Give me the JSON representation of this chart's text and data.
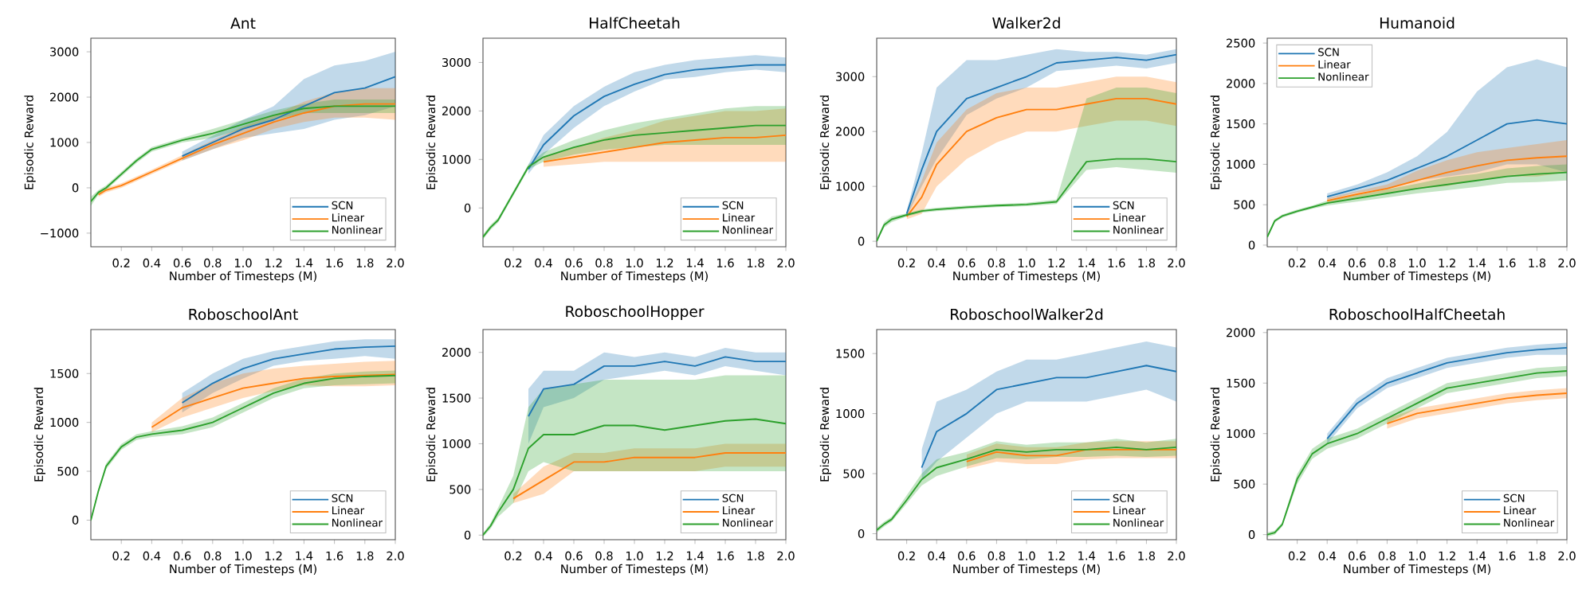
{
  "chart_data": [
    {
      "type": "line",
      "title": "Ant",
      "xlabel": "Number of Timesteps (M)",
      "ylabel": "Episodic Reward",
      "legend": "bottom right",
      "x": [
        0,
        0.05,
        0.1,
        0.2,
        0.3,
        0.4,
        0.6,
        0.8,
        1.0,
        1.2,
        1.4,
        1.6,
        1.8,
        2.0
      ],
      "xlim": [
        0,
        2
      ],
      "xticks": [
        {
          "value": 0.2,
          "label": "0.2"
        },
        {
          "value": 0.4,
          "label": "0.4"
        },
        {
          "value": 0.6,
          "label": "0.6"
        },
        {
          "value": 0.8,
          "label": "0.8"
        },
        {
          "value": 1.0,
          "label": "1.0"
        },
        {
          "value": 1.2,
          "label": "1.2"
        },
        {
          "value": 1.4,
          "label": "1.4"
        },
        {
          "value": 1.6,
          "label": "1.6"
        },
        {
          "value": 1.8,
          "label": "1.8"
        },
        {
          "value": 2.0,
          "label": "2.0"
        }
      ],
      "ylim": [
        -1300,
        3300
      ],
      "yticks": [
        {
          "value": -1000,
          "label": "−1000"
        },
        0,
        1000,
        2000,
        3000
      ],
      "series": [
        {
          "name": "SCN",
          "color": "#1f77b4",
          "values": [
            null,
            null,
            null,
            null,
            null,
            null,
            700,
            1000,
            1300,
            1500,
            1800,
            2100,
            2200,
            2450
          ],
          "lower": [
            null,
            null,
            null,
            null,
            null,
            null,
            600,
            850,
            1100,
            1200,
            1300,
            1500,
            1600,
            1800
          ],
          "upper": [
            null,
            null,
            null,
            null,
            null,
            null,
            800,
            1150,
            1500,
            1800,
            2400,
            2700,
            2800,
            3000
          ]
        },
        {
          "name": "Linear",
          "color": "#ff7f0e",
          "values": [
            null,
            -150,
            -50,
            50,
            200,
            350,
            650,
            950,
            1200,
            1450,
            1650,
            1800,
            1850,
            1850
          ],
          "lower": [
            null,
            -200,
            -100,
            0,
            150,
            300,
            600,
            850,
            1050,
            1300,
            1450,
            1550,
            1550,
            1500
          ],
          "upper": [
            null,
            -100,
            0,
            100,
            250,
            400,
            720,
            1050,
            1350,
            1600,
            1900,
            2100,
            2200,
            2200
          ]
        },
        {
          "name": "Nonlinear",
          "color": "#2ca02c",
          "values": [
            -300,
            -100,
            0,
            300,
            600,
            850,
            1050,
            1200,
            1400,
            1600,
            1750,
            1800,
            1800,
            1800
          ],
          "lower": [
            -400,
            -150,
            -50,
            250,
            550,
            800,
            1000,
            1100,
            1300,
            1500,
            1650,
            1650,
            1650,
            1650
          ],
          "upper": [
            -200,
            -50,
            50,
            350,
            650,
            900,
            1100,
            1300,
            1500,
            1700,
            1850,
            1950,
            1950,
            1950
          ]
        }
      ]
    },
    {
      "type": "line",
      "title": "HalfCheetah",
      "xlabel": "Number of Timesteps (M)",
      "ylabel": "Episodic Reward",
      "legend": "bottom right",
      "x": [
        0,
        0.05,
        0.1,
        0.2,
        0.3,
        0.4,
        0.6,
        0.8,
        1.0,
        1.2,
        1.4,
        1.6,
        1.8,
        2.0
      ],
      "xlim": [
        0,
        2
      ],
      "xticks": [
        {
          "value": 0.2,
          "label": "0.2"
        },
        {
          "value": 0.4,
          "label": "0.4"
        },
        {
          "value": 0.6,
          "label": "0.6"
        },
        {
          "value": 0.8,
          "label": "0.8"
        },
        {
          "value": 1.0,
          "label": "1.0"
        },
        {
          "value": 1.2,
          "label": "1.2"
        },
        {
          "value": 1.4,
          "label": "1.4"
        },
        {
          "value": 1.6,
          "label": "1.6"
        },
        {
          "value": 1.8,
          "label": "1.8"
        },
        {
          "value": 2.0,
          "label": "2.0"
        }
      ],
      "ylim": [
        -800,
        3500
      ],
      "yticks": [
        0,
        1000,
        2000,
        3000
      ],
      "series": [
        {
          "name": "SCN",
          "color": "#1f77b4",
          "values": [
            null,
            null,
            null,
            null,
            800,
            1300,
            1900,
            2300,
            2550,
            2750,
            2850,
            2900,
            2950,
            2950
          ],
          "lower": [
            null,
            null,
            null,
            null,
            700,
            1100,
            1650,
            2100,
            2400,
            2650,
            2700,
            2800,
            2850,
            2800
          ],
          "upper": [
            null,
            null,
            null,
            null,
            900,
            1500,
            2100,
            2500,
            2800,
            2950,
            3050,
            3100,
            3150,
            3100
          ]
        },
        {
          "name": "Linear",
          "color": "#ff7f0e",
          "values": [
            null,
            null,
            null,
            null,
            null,
            950,
            1050,
            1150,
            1250,
            1350,
            1400,
            1450,
            1450,
            1500
          ],
          "lower": [
            null,
            null,
            null,
            null,
            null,
            850,
            900,
            950,
            950,
            950,
            950,
            950,
            950,
            950
          ],
          "upper": [
            null,
            null,
            null,
            null,
            null,
            1050,
            1250,
            1450,
            1600,
            1800,
            1900,
            2000,
            2000,
            2050
          ]
        },
        {
          "name": "Nonlinear",
          "color": "#2ca02c",
          "values": [
            -600,
            -400,
            -250,
            300,
            850,
            1050,
            1250,
            1400,
            1500,
            1550,
            1600,
            1650,
            1700,
            1700
          ],
          "lower": [
            -650,
            -450,
            -300,
            250,
            800,
            950,
            1100,
            1200,
            1250,
            1300,
            1300,
            1300,
            1300,
            1300
          ],
          "upper": [
            -550,
            -350,
            -200,
            350,
            900,
            1150,
            1400,
            1600,
            1750,
            1850,
            1950,
            2050,
            2100,
            2100
          ]
        }
      ]
    },
    {
      "type": "line",
      "title": "Walker2d",
      "xlabel": "Number of Timesteps (M)",
      "ylabel": "Episodic Reward",
      "legend": "bottom right",
      "x": [
        0,
        0.05,
        0.1,
        0.2,
        0.3,
        0.4,
        0.6,
        0.8,
        1.0,
        1.2,
        1.4,
        1.6,
        1.8,
        2.0
      ],
      "xlim": [
        0,
        2
      ],
      "xticks": [
        {
          "value": 0.2,
          "label": "0.2"
        },
        {
          "value": 0.4,
          "label": "0.4"
        },
        {
          "value": 0.6,
          "label": "0.6"
        },
        {
          "value": 0.8,
          "label": "0.8"
        },
        {
          "value": 1.0,
          "label": "1.0"
        },
        {
          "value": 1.2,
          "label": "1.2"
        },
        {
          "value": 1.4,
          "label": "1.4"
        },
        {
          "value": 1.6,
          "label": "1.6"
        },
        {
          "value": 1.8,
          "label": "1.8"
        },
        {
          "value": 2.0,
          "label": "2.0"
        }
      ],
      "ylim": [
        -100,
        3700
      ],
      "yticks": [
        0,
        1000,
        2000,
        3000
      ],
      "series": [
        {
          "name": "SCN",
          "color": "#1f77b4",
          "values": [
            null,
            null,
            null,
            500,
            1300,
            2000,
            2600,
            2800,
            3000,
            3250,
            3300,
            3350,
            3300,
            3400
          ],
          "lower": [
            null,
            null,
            null,
            450,
            1000,
            1500,
            2300,
            2600,
            2800,
            3100,
            3150,
            3200,
            3150,
            3250
          ],
          "upper": [
            null,
            null,
            null,
            550,
            1600,
            2800,
            3300,
            3300,
            3400,
            3500,
            3450,
            3450,
            3400,
            3500
          ]
        },
        {
          "name": "Linear",
          "color": "#ff7f0e",
          "values": [
            null,
            null,
            null,
            450,
            800,
            1400,
            2000,
            2250,
            2400,
            2400,
            2500,
            2600,
            2600,
            2500
          ],
          "lower": [
            null,
            null,
            null,
            400,
            500,
            1000,
            1500,
            1800,
            2000,
            2000,
            2100,
            2200,
            2200,
            2100
          ],
          "upper": [
            null,
            null,
            null,
            500,
            1100,
            1800,
            2400,
            2700,
            2800,
            2800,
            2900,
            3000,
            3000,
            2900
          ]
        },
        {
          "name": "Nonlinear",
          "color": "#2ca02c",
          "values": [
            0,
            300,
            400,
            480,
            550,
            580,
            620,
            650,
            670,
            720,
            1450,
            1500,
            1500,
            1450
          ],
          "lower": [
            0,
            250,
            350,
            450,
            520,
            550,
            590,
            620,
            640,
            680,
            1300,
            1350,
            1300,
            1250
          ],
          "upper": [
            50,
            350,
            450,
            510,
            580,
            610,
            650,
            680,
            700,
            760,
            2600,
            2800,
            2800,
            2700
          ]
        }
      ]
    },
    {
      "type": "line",
      "title": "Humanoid",
      "xlabel": "Number of Timesteps (M)",
      "ylabel": "Episodic Reward",
      "legend": "top left",
      "x": [
        0,
        0.05,
        0.1,
        0.2,
        0.3,
        0.4,
        0.6,
        0.8,
        1.0,
        1.2,
        1.4,
        1.6,
        1.8,
        2.0
      ],
      "xlim": [
        0,
        2
      ],
      "xticks": [
        {
          "value": 0.2,
          "label": "0.2"
        },
        {
          "value": 0.4,
          "label": "0.4"
        },
        {
          "value": 0.6,
          "label": "0.6"
        },
        {
          "value": 0.8,
          "label": "0.8"
        },
        {
          "value": 1.0,
          "label": "1.0"
        },
        {
          "value": 1.2,
          "label": "1.2"
        },
        {
          "value": 1.4,
          "label": "1.4"
        },
        {
          "value": 1.6,
          "label": "1.6"
        },
        {
          "value": 1.8,
          "label": "1.8"
        },
        {
          "value": 2.0,
          "label": "2.0"
        }
      ],
      "ylim": [
        -20,
        2560
      ],
      "yticks": [
        0,
        500,
        1000,
        1500,
        2000,
        2500
      ],
      "series": [
        {
          "name": "SCN",
          "color": "#1f77b4",
          "values": [
            null,
            null,
            null,
            null,
            null,
            600,
            700,
            800,
            950,
            1100,
            1300,
            1500,
            1550,
            1500
          ],
          "lower": [
            null,
            null,
            null,
            null,
            null,
            560,
            650,
            700,
            800,
            850,
            900,
            1000,
            1000,
            900
          ],
          "upper": [
            null,
            null,
            null,
            null,
            null,
            640,
            750,
            900,
            1100,
            1400,
            1900,
            2200,
            2300,
            2200
          ]
        },
        {
          "name": "Linear",
          "color": "#ff7f0e",
          "values": [
            null,
            null,
            null,
            null,
            null,
            550,
            630,
            700,
            800,
            900,
            980,
            1050,
            1080,
            1100
          ],
          "lower": [
            null,
            null,
            null,
            null,
            null,
            520,
            590,
            650,
            700,
            730,
            800,
            850,
            850,
            900
          ],
          "upper": [
            null,
            null,
            null,
            null,
            null,
            580,
            670,
            750,
            920,
            1050,
            1150,
            1200,
            1250,
            1300
          ]
        },
        {
          "name": "Nonlinear",
          "color": "#2ca02c",
          "values": [
            100,
            300,
            360,
            420,
            470,
            520,
            580,
            640,
            700,
            750,
            800,
            850,
            880,
            900
          ],
          "lower": [
            80,
            280,
            340,
            400,
            450,
            490,
            540,
            590,
            640,
            680,
            720,
            770,
            780,
            800
          ],
          "upper": [
            120,
            320,
            380,
            440,
            490,
            550,
            620,
            690,
            760,
            840,
            880,
            950,
            980,
            1000
          ]
        }
      ]
    },
    {
      "type": "line",
      "title": "RoboschoolAnt",
      "xlabel": "Number of Timesteps (M)",
      "ylabel": "Episodic Reward",
      "legend": "bottom right",
      "x": [
        0,
        0.05,
        0.1,
        0.2,
        0.3,
        0.4,
        0.6,
        0.8,
        1.0,
        1.2,
        1.4,
        1.6,
        1.8,
        2.0
      ],
      "xlim": [
        0,
        2
      ],
      "xticks": [
        {
          "value": 0.2,
          "label": "0.2"
        },
        {
          "value": 0.4,
          "label": "0.4"
        },
        {
          "value": 0.6,
          "label": "0.6"
        },
        {
          "value": 0.8,
          "label": "0.8"
        },
        {
          "value": 1.0,
          "label": "1.0"
        },
        {
          "value": 1.2,
          "label": "1.2"
        },
        {
          "value": 1.4,
          "label": "1.4"
        },
        {
          "value": 1.6,
          "label": "1.6"
        },
        {
          "value": 1.8,
          "label": "1.8"
        },
        {
          "value": 2.0,
          "label": "2.0"
        }
      ],
      "ylim": [
        -200,
        1950
      ],
      "yticks": [
        0,
        500,
        1000,
        1500
      ],
      "series": [
        {
          "name": "SCN",
          "color": "#1f77b4",
          "values": [
            null,
            null,
            null,
            null,
            null,
            null,
            1200,
            1400,
            1550,
            1650,
            1700,
            1750,
            1770,
            1780
          ],
          "lower": [
            null,
            null,
            null,
            null,
            null,
            null,
            1100,
            1300,
            1450,
            1580,
            1630,
            1650,
            1680,
            1650
          ],
          "upper": [
            null,
            null,
            null,
            null,
            null,
            null,
            1300,
            1500,
            1650,
            1730,
            1780,
            1830,
            1850,
            1850
          ]
        },
        {
          "name": "Linear",
          "color": "#ff7f0e",
          "values": [
            null,
            null,
            null,
            null,
            null,
            950,
            1150,
            1250,
            1350,
            1400,
            1450,
            1470,
            1480,
            1490
          ],
          "lower": [
            null,
            null,
            null,
            null,
            null,
            900,
            1050,
            1150,
            1250,
            1320,
            1380,
            1370,
            1370,
            1380
          ],
          "upper": [
            null,
            null,
            null,
            null,
            null,
            1000,
            1250,
            1400,
            1500,
            1550,
            1580,
            1600,
            1620,
            1630
          ]
        },
        {
          "name": "Nonlinear",
          "color": "#2ca02c",
          "values": [
            0,
            300,
            550,
            750,
            850,
            880,
            920,
            1000,
            1150,
            1300,
            1400,
            1450,
            1470,
            1480
          ],
          "lower": [
            -20,
            280,
            520,
            720,
            820,
            850,
            880,
            950,
            1100,
            1250,
            1350,
            1380,
            1390,
            1400
          ],
          "upper": [
            20,
            320,
            580,
            780,
            880,
            910,
            960,
            1050,
            1200,
            1350,
            1450,
            1500,
            1520,
            1530
          ]
        }
      ]
    },
    {
      "type": "line",
      "title": "RoboschoolHopper",
      "xlabel": "Number of Timesteps (M)",
      "ylabel": "Episodic Reward",
      "legend": "bottom right",
      "x": [
        0,
        0.05,
        0.1,
        0.2,
        0.3,
        0.4,
        0.6,
        0.8,
        1.0,
        1.2,
        1.4,
        1.6,
        1.8,
        2.0
      ],
      "xlim": [
        0,
        2
      ],
      "xticks": [
        {
          "value": 0.2,
          "label": "0.2"
        },
        {
          "value": 0.4,
          "label": "0.4"
        },
        {
          "value": 0.6,
          "label": "0.6"
        },
        {
          "value": 0.8,
          "label": "0.8"
        },
        {
          "value": 1.0,
          "label": "1.0"
        },
        {
          "value": 1.2,
          "label": "1.2"
        },
        {
          "value": 1.4,
          "label": "1.4"
        },
        {
          "value": 1.6,
          "label": "1.6"
        },
        {
          "value": 1.8,
          "label": "1.8"
        },
        {
          "value": 2.0,
          "label": "2.0"
        }
      ],
      "ylim": [
        -50,
        2250
      ],
      "yticks": [
        0,
        500,
        1000,
        1500,
        2000
      ],
      "series": [
        {
          "name": "SCN",
          "color": "#1f77b4",
          "values": [
            null,
            null,
            null,
            null,
            1300,
            1600,
            1650,
            1850,
            1850,
            1900,
            1850,
            1950,
            1900,
            1900
          ],
          "lower": [
            null,
            null,
            null,
            null,
            1000,
            1400,
            1500,
            1700,
            1750,
            1800,
            1750,
            1850,
            1800,
            1750
          ],
          "upper": [
            null,
            null,
            null,
            null,
            1600,
            1800,
            1800,
            2000,
            1950,
            2000,
            1950,
            2050,
            2000,
            2000
          ]
        },
        {
          "name": "Linear",
          "color": "#ff7f0e",
          "values": [
            null,
            null,
            null,
            400,
            500,
            600,
            800,
            800,
            850,
            850,
            850,
            900,
            900,
            900
          ],
          "lower": [
            null,
            null,
            null,
            350,
            400,
            450,
            700,
            700,
            700,
            700,
            700,
            750,
            750,
            750
          ],
          "upper": [
            null,
            null,
            null,
            450,
            600,
            750,
            900,
            900,
            950,
            950,
            950,
            1000,
            1000,
            1000
          ]
        },
        {
          "name": "Nonlinear",
          "color": "#2ca02c",
          "values": [
            0,
            100,
            250,
            500,
            950,
            1100,
            1100,
            1200,
            1200,
            1150,
            1200,
            1250,
            1270,
            1220
          ],
          "lower": [
            -20,
            70,
            200,
            350,
            700,
            800,
            700,
            700,
            700,
            700,
            700,
            700,
            700,
            700
          ],
          "upper": [
            20,
            130,
            300,
            650,
            1400,
            1600,
            1650,
            1700,
            1700,
            1700,
            1700,
            1750,
            1750,
            1750
          ]
        }
      ]
    },
    {
      "type": "line",
      "title": "RoboschoolWalker2d",
      "xlabel": "Number of Timesteps (M)",
      "ylabel": "Episodic Reward",
      "legend": "bottom right",
      "x": [
        0,
        0.05,
        0.1,
        0.2,
        0.3,
        0.4,
        0.6,
        0.8,
        1.0,
        1.2,
        1.4,
        1.6,
        1.8,
        2.0
      ],
      "xlim": [
        0,
        2
      ],
      "xticks": [
        {
          "value": 0.2,
          "label": "0.2"
        },
        {
          "value": 0.4,
          "label": "0.4"
        },
        {
          "value": 0.6,
          "label": "0.6"
        },
        {
          "value": 0.8,
          "label": "0.8"
        },
        {
          "value": 1.0,
          "label": "1.0"
        },
        {
          "value": 1.2,
          "label": "1.2"
        },
        {
          "value": 1.4,
          "label": "1.4"
        },
        {
          "value": 1.6,
          "label": "1.6"
        },
        {
          "value": 1.8,
          "label": "1.8"
        },
        {
          "value": 2.0,
          "label": "2.0"
        }
      ],
      "ylim": [
        -50,
        1700
      ],
      "yticks": [
        0,
        500,
        1000,
        1500
      ],
      "series": [
        {
          "name": "SCN",
          "color": "#1f77b4",
          "values": [
            null,
            null,
            null,
            null,
            550,
            850,
            1000,
            1200,
            1250,
            1300,
            1300,
            1350,
            1400,
            1350
          ],
          "lower": [
            null,
            null,
            null,
            null,
            450,
            600,
            800,
            1000,
            1100,
            1100,
            1100,
            1150,
            1200,
            1100
          ],
          "upper": [
            null,
            null,
            null,
            null,
            700,
            1100,
            1200,
            1350,
            1450,
            1450,
            1500,
            1550,
            1600,
            1550
          ]
        },
        {
          "name": "Linear",
          "color": "#ff7f0e",
          "values": [
            null,
            null,
            null,
            null,
            null,
            null,
            600,
            680,
            650,
            650,
            700,
            700,
            700,
            700
          ],
          "lower": [
            null,
            null,
            null,
            null,
            null,
            null,
            540,
            600,
            580,
            580,
            620,
            630,
            630,
            630
          ],
          "upper": [
            null,
            null,
            null,
            null,
            null,
            null,
            660,
            750,
            720,
            720,
            760,
            770,
            770,
            770
          ]
        },
        {
          "name": "Nonlinear",
          "color": "#2ca02c",
          "values": [
            30,
            80,
            120,
            280,
            450,
            550,
            620,
            700,
            680,
            700,
            700,
            720,
            700,
            720
          ],
          "lower": [
            10,
            60,
            100,
            250,
            400,
            480,
            560,
            630,
            620,
            640,
            640,
            650,
            640,
            650
          ],
          "upper": [
            50,
            100,
            140,
            320,
            500,
            620,
            680,
            770,
            740,
            760,
            760,
            790,
            760,
            790
          ]
        }
      ]
    },
    {
      "type": "line",
      "title": "RoboschoolHalfCheetah",
      "xlabel": "Number of Timesteps (M)",
      "ylabel": "Episodic Reward",
      "legend": "bottom right",
      "x": [
        0,
        0.05,
        0.1,
        0.2,
        0.3,
        0.4,
        0.6,
        0.8,
        1.0,
        1.2,
        1.4,
        1.6,
        1.8,
        2.0
      ],
      "xlim": [
        0,
        2
      ],
      "xticks": [
        {
          "value": 0.2,
          "label": "0.2"
        },
        {
          "value": 0.4,
          "label": "0.4"
        },
        {
          "value": 0.6,
          "label": "0.6"
        },
        {
          "value": 0.8,
          "label": "0.8"
        },
        {
          "value": 1.0,
          "label": "1.0"
        },
        {
          "value": 1.2,
          "label": "1.2"
        },
        {
          "value": 1.4,
          "label": "1.4"
        },
        {
          "value": 1.6,
          "label": "1.6"
        },
        {
          "value": 1.8,
          "label": "1.8"
        },
        {
          "value": 2.0,
          "label": "2.0"
        }
      ],
      "ylim": [
        -50,
        2030
      ],
      "yticks": [
        0,
        500,
        1000,
        1500,
        2000
      ],
      "series": [
        {
          "name": "SCN",
          "color": "#1f77b4",
          "values": [
            null,
            null,
            null,
            null,
            null,
            950,
            1300,
            1500,
            1600,
            1700,
            1750,
            1800,
            1830,
            1850
          ],
          "lower": [
            null,
            null,
            null,
            null,
            null,
            900,
            1250,
            1450,
            1550,
            1650,
            1700,
            1750,
            1780,
            1780
          ],
          "upper": [
            null,
            null,
            null,
            null,
            null,
            1000,
            1350,
            1550,
            1650,
            1750,
            1800,
            1850,
            1880,
            1900
          ]
        },
        {
          "name": "Linear",
          "color": "#ff7f0e",
          "values": [
            null,
            null,
            null,
            null,
            null,
            null,
            null,
            1100,
            1200,
            1250,
            1300,
            1350,
            1380,
            1400
          ],
          "lower": [
            null,
            null,
            null,
            null,
            null,
            null,
            null,
            1050,
            1150,
            1200,
            1250,
            1300,
            1330,
            1350
          ],
          "upper": [
            null,
            null,
            null,
            null,
            null,
            null,
            null,
            1150,
            1250,
            1300,
            1350,
            1400,
            1430,
            1450
          ]
        },
        {
          "name": "Nonlinear",
          "color": "#2ca02c",
          "values": [
            0,
            20,
            100,
            550,
            800,
            900,
            1000,
            1150,
            1300,
            1450,
            1500,
            1550,
            1600,
            1620
          ],
          "lower": [
            -20,
            0,
            80,
            500,
            750,
            850,
            950,
            1100,
            1250,
            1400,
            1450,
            1500,
            1550,
            1570
          ],
          "upper": [
            20,
            40,
            120,
            600,
            850,
            950,
            1050,
            1200,
            1350,
            1500,
            1550,
            1600,
            1650,
            1670
          ]
        }
      ]
    }
  ]
}
